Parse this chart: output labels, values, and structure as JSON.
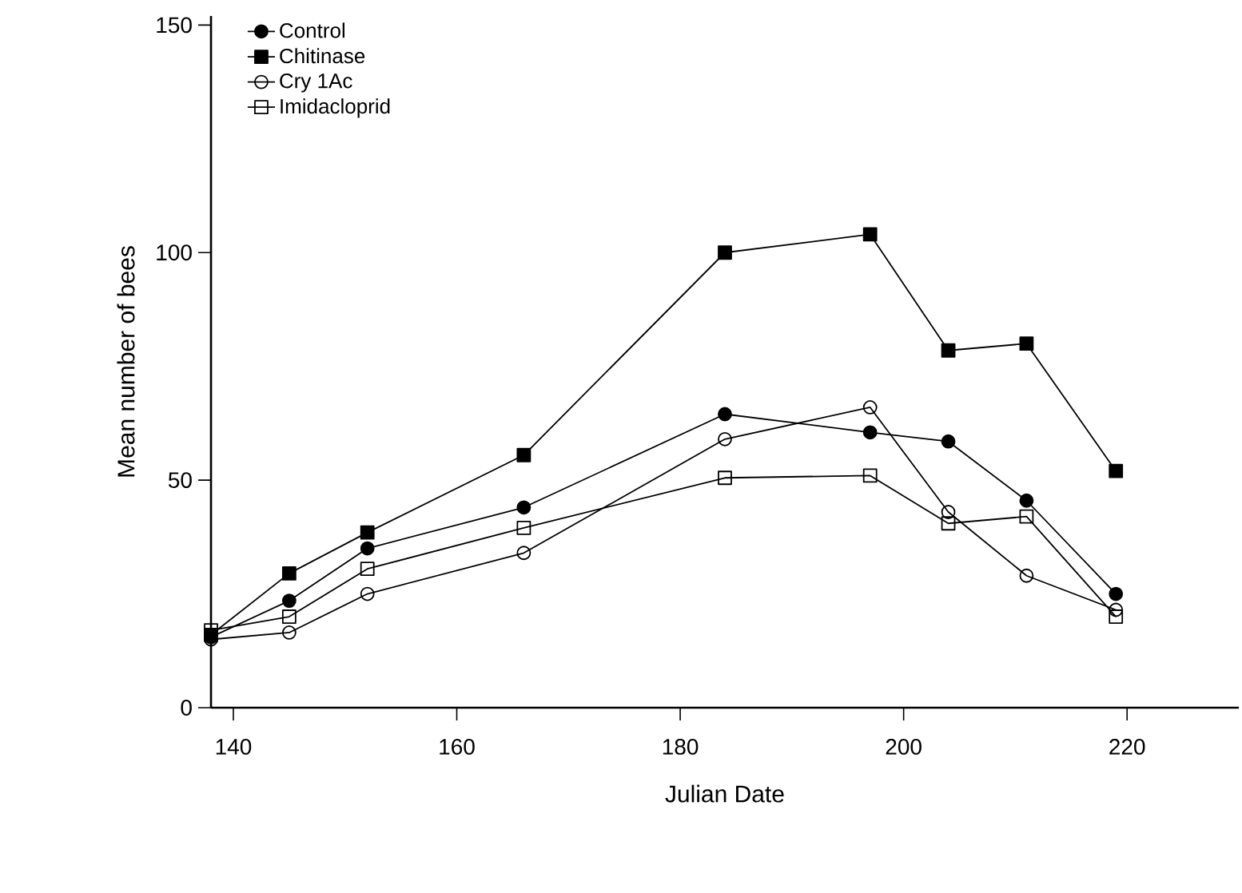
{
  "chart_data": {
    "type": "line",
    "xlabel": "Julian Date",
    "ylabel": "Mean number of bees",
    "x": [
      138,
      145,
      152,
      166,
      184,
      197,
      204,
      211,
      219
    ],
    "series": [
      {
        "name": "Control",
        "color": "#000000",
        "marker": "circle",
        "values": [
          15.5,
          23.5,
          35,
          44,
          64.5,
          60.5,
          58.5,
          45.5,
          25
        ]
      },
      {
        "name": "Chitinase",
        "color": "#000000",
        "marker": "square",
        "values": [
          16,
          29.5,
          38.5,
          55.5,
          100,
          104,
          78.5,
          80,
          52
        ]
      },
      {
        "name": "Cry 1Ac",
        "color": "#000000",
        "marker": "circle-open",
        "values": [
          15,
          16.5,
          25,
          34,
          59,
          66,
          43,
          29,
          21.5
        ]
      },
      {
        "name": "Imidacloprid",
        "color": "#000000",
        "marker": "square-open",
        "values": [
          17,
          20,
          30.5,
          39.5,
          50.5,
          51,
          40.5,
          42,
          20
        ]
      }
    ],
    "xlim": [
      138,
      230
    ],
    "ylim": [
      0,
      152
    ],
    "xticks": [
      140,
      160,
      180,
      200,
      220
    ],
    "yticks": [
      0,
      50,
      100,
      150
    ],
    "line_style": "solid",
    "grid": false,
    "legend": "top left"
  }
}
